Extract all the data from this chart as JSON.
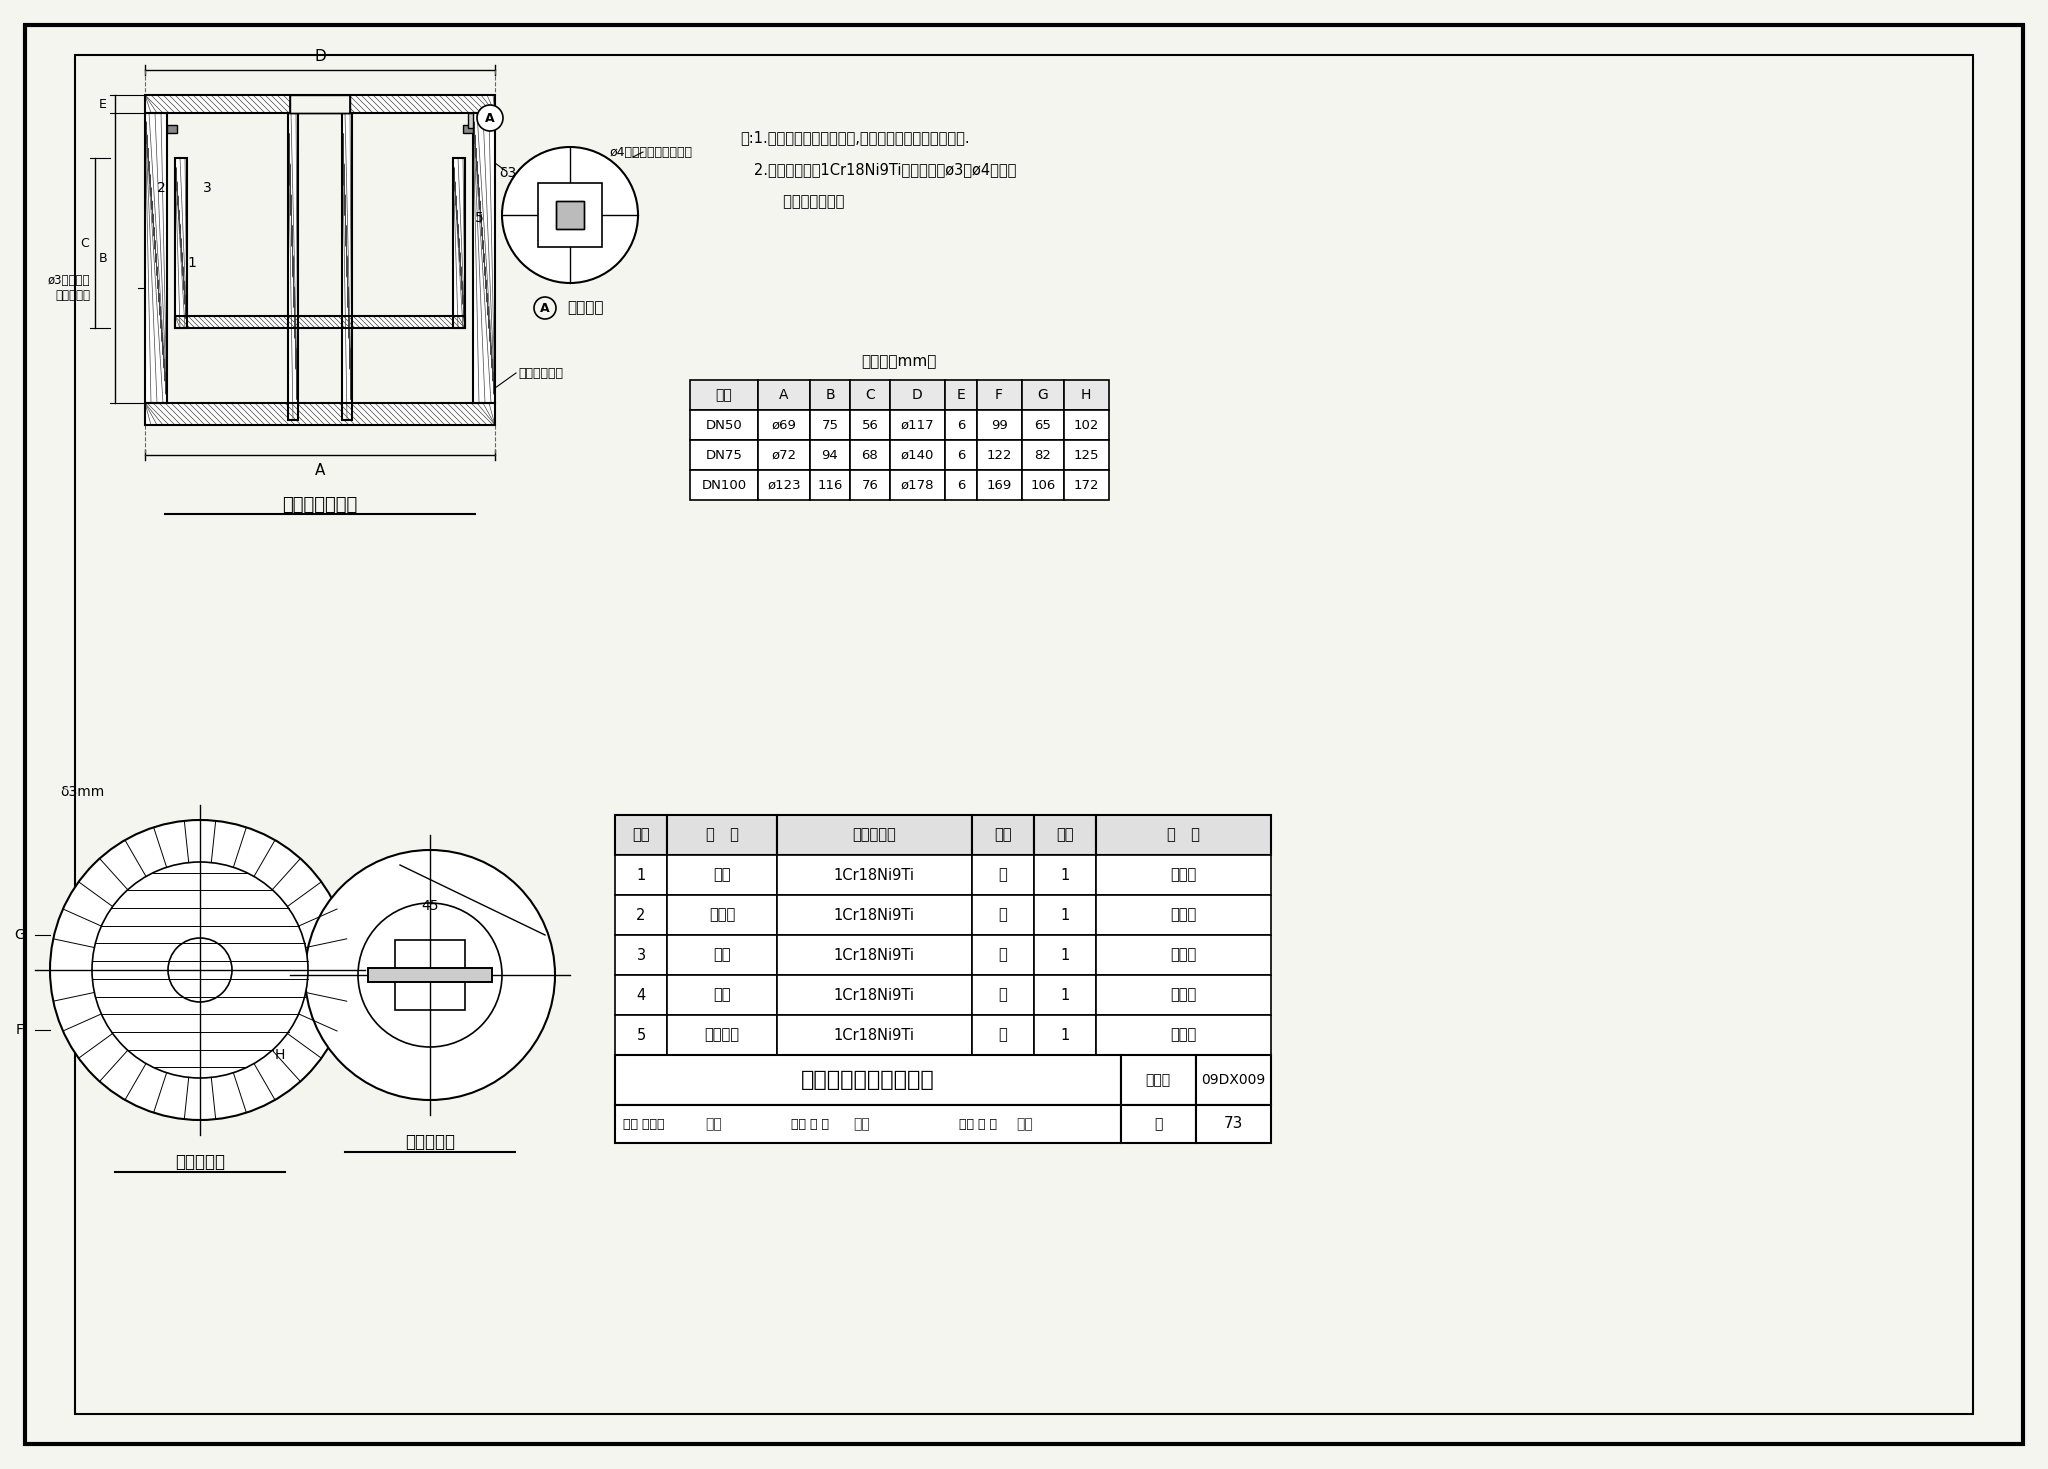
{
  "bg_color": "#f5f5f0",
  "note_line1": "注:1.本洁净地漏为机房专用,可阻隔不洁气体从地漏溢出.",
  "note_line2": "   2.本洁净地漏用1Cr18Ni9Ti制造，并配ø3和ø4耐油丁",
  "note_line3": "     腈橡胶密封圈．",
  "node_detail_label": "节点详图",
  "node_seal_label": "ø4耐油丁腈橡胶密封圈",
  "label_delta3": "δ3",
  "label_removable": "可拆卸防水圈",
  "label_seal3": "ø3耐油丁腈\n橡胶密封圈",
  "label_delta3mm": "δ3mm",
  "dim_45": "45",
  "size_table_title": "尺寸表（mm）",
  "size_headers": [
    "规格",
    "A",
    "B",
    "C",
    "D",
    "E",
    "F",
    "G",
    "H"
  ],
  "size_rows": [
    [
      "DN50",
      "ø69",
      "75",
      "56",
      "ø117",
      "6",
      "99",
      "65",
      "102"
    ],
    [
      "DN75",
      "ø72",
      "94",
      "68",
      "ø140",
      "6",
      "122",
      "82",
      "125"
    ],
    [
      "DN100",
      "ø123",
      "116",
      "76",
      "ø178",
      "6",
      "169",
      "106",
      "172"
    ]
  ],
  "title_sub": "洁净地漏结构图",
  "title_bottom_cover": "下盖结构图",
  "title_top_cover": "上盖结构图",
  "bom_headers": [
    "序号",
    "名   称",
    "型号及规格",
    "单位",
    "数量",
    "备   注"
  ],
  "bom_rows": [
    [
      "1",
      "本体",
      "1Cr18Ni9Ti",
      "个",
      "1",
      "不锈钢"
    ],
    [
      "2",
      "水封件",
      "1Cr18Ni9Ti",
      "个",
      "1",
      "不锈钢"
    ],
    [
      "3",
      "下盖",
      "1Cr18Ni9Ti",
      "个",
      "1",
      "不锈钢"
    ],
    [
      "4",
      "上盖",
      "1Cr18Ni9Ti",
      "个",
      "1",
      "不锈钢"
    ],
    [
      "5",
      "防水莫环",
      "1Cr18Ni9Ti",
      "个",
      "1",
      "不锈钢"
    ]
  ],
  "title_main": "机房用洁净地漏结构图",
  "fig_no_label": "图集号",
  "fig_no_value": "09DX009",
  "page_label": "页",
  "page_value": "73"
}
